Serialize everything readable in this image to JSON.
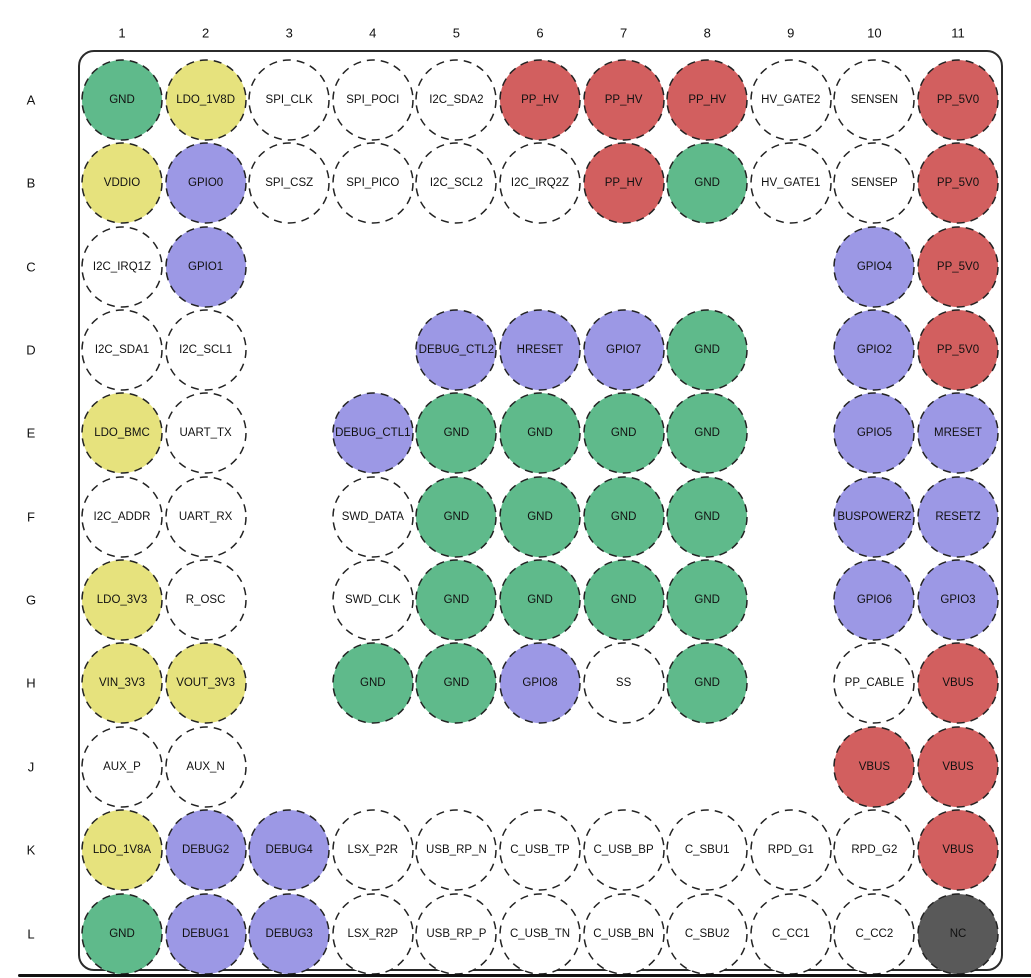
{
  "diagram": {
    "columns": [
      "1",
      "2",
      "3",
      "4",
      "5",
      "6",
      "7",
      "8",
      "9",
      "10",
      "11"
    ],
    "rows": [
      "A",
      "B",
      "C",
      "D",
      "E",
      "F",
      "G",
      "H",
      "J",
      "K",
      "L"
    ],
    "colors": {
      "green": "#5FBA8B",
      "yellow": "#E6E27D",
      "purple": "#9C98E5",
      "red": "#D25F5F",
      "dark": "#595959",
      "white": "#FFFFFF",
      "stroke": "#222222"
    },
    "pins": [
      {
        "row": "A",
        "col": 1,
        "label": "GND",
        "color": "green"
      },
      {
        "row": "A",
        "col": 2,
        "label": "LDO_1V8D",
        "color": "yellow"
      },
      {
        "row": "A",
        "col": 3,
        "label": "SPI_CLK",
        "color": "white"
      },
      {
        "row": "A",
        "col": 4,
        "label": "SPI_POCI",
        "color": "white"
      },
      {
        "row": "A",
        "col": 5,
        "label": "I2C_SDA2",
        "color": "white"
      },
      {
        "row": "A",
        "col": 6,
        "label": "PP_HV",
        "color": "red"
      },
      {
        "row": "A",
        "col": 7,
        "label": "PP_HV",
        "color": "red"
      },
      {
        "row": "A",
        "col": 8,
        "label": "PP_HV",
        "color": "red"
      },
      {
        "row": "A",
        "col": 9,
        "label": "HV_GATE2",
        "color": "white"
      },
      {
        "row": "A",
        "col": 10,
        "label": "SENSEN",
        "color": "white"
      },
      {
        "row": "A",
        "col": 11,
        "label": "PP_5V0",
        "color": "red"
      },
      {
        "row": "B",
        "col": 1,
        "label": "VDDIO",
        "color": "yellow"
      },
      {
        "row": "B",
        "col": 2,
        "label": "GPIO0",
        "color": "purple"
      },
      {
        "row": "B",
        "col": 3,
        "label": "SPI_CSZ",
        "color": "white"
      },
      {
        "row": "B",
        "col": 4,
        "label": "SPI_PICO",
        "color": "white"
      },
      {
        "row": "B",
        "col": 5,
        "label": "I2C_SCL2",
        "color": "white"
      },
      {
        "row": "B",
        "col": 6,
        "label": "I2C_IRQ2Z",
        "color": "white"
      },
      {
        "row": "B",
        "col": 7,
        "label": "PP_HV",
        "color": "red"
      },
      {
        "row": "B",
        "col": 8,
        "label": "GND",
        "color": "green"
      },
      {
        "row": "B",
        "col": 9,
        "label": "HV_GATE1",
        "color": "white"
      },
      {
        "row": "B",
        "col": 10,
        "label": "SENSEP",
        "color": "white"
      },
      {
        "row": "B",
        "col": 11,
        "label": "PP_5V0",
        "color": "red"
      },
      {
        "row": "C",
        "col": 1,
        "label": "I2C_IRQ1Z",
        "color": "white"
      },
      {
        "row": "C",
        "col": 2,
        "label": "GPIO1",
        "color": "purple"
      },
      {
        "row": "C",
        "col": 10,
        "label": "GPIO4",
        "color": "purple"
      },
      {
        "row": "C",
        "col": 11,
        "label": "PP_5V0",
        "color": "red"
      },
      {
        "row": "D",
        "col": 1,
        "label": "I2C_SDA1",
        "color": "white"
      },
      {
        "row": "D",
        "col": 2,
        "label": "I2C_SCL1",
        "color": "white"
      },
      {
        "row": "D",
        "col": 5,
        "label": "DEBUG_CTL2",
        "color": "purple"
      },
      {
        "row": "D",
        "col": 6,
        "label": "HRESET",
        "color": "purple"
      },
      {
        "row": "D",
        "col": 7,
        "label": "GPIO7",
        "color": "purple"
      },
      {
        "row": "D",
        "col": 8,
        "label": "GND",
        "color": "green"
      },
      {
        "row": "D",
        "col": 10,
        "label": "GPIO2",
        "color": "purple"
      },
      {
        "row": "D",
        "col": 11,
        "label": "PP_5V0",
        "color": "red"
      },
      {
        "row": "E",
        "col": 1,
        "label": "LDO_BMC",
        "color": "yellow"
      },
      {
        "row": "E",
        "col": 2,
        "label": "UART_TX",
        "color": "white"
      },
      {
        "row": "E",
        "col": 4,
        "label": "DEBUG_CTL1",
        "color": "purple"
      },
      {
        "row": "E",
        "col": 5,
        "label": "GND",
        "color": "green"
      },
      {
        "row": "E",
        "col": 6,
        "label": "GND",
        "color": "green"
      },
      {
        "row": "E",
        "col": 7,
        "label": "GND",
        "color": "green"
      },
      {
        "row": "E",
        "col": 8,
        "label": "GND",
        "color": "green"
      },
      {
        "row": "E",
        "col": 10,
        "label": "GPIO5",
        "color": "purple"
      },
      {
        "row": "E",
        "col": 11,
        "label": "MRESET",
        "color": "purple"
      },
      {
        "row": "F",
        "col": 1,
        "label": "I2C_ADDR",
        "color": "white"
      },
      {
        "row": "F",
        "col": 2,
        "label": "UART_RX",
        "color": "white"
      },
      {
        "row": "F",
        "col": 4,
        "label": "SWD_DATA",
        "color": "white"
      },
      {
        "row": "F",
        "col": 5,
        "label": "GND",
        "color": "green"
      },
      {
        "row": "F",
        "col": 6,
        "label": "GND",
        "color": "green"
      },
      {
        "row": "F",
        "col": 7,
        "label": "GND",
        "color": "green"
      },
      {
        "row": "F",
        "col": 8,
        "label": "GND",
        "color": "green"
      },
      {
        "row": "F",
        "col": 10,
        "label": "BUSPOWERZ",
        "color": "purple"
      },
      {
        "row": "F",
        "col": 11,
        "label": "RESETZ",
        "color": "purple"
      },
      {
        "row": "G",
        "col": 1,
        "label": "LDO_3V3",
        "color": "yellow"
      },
      {
        "row": "G",
        "col": 2,
        "label": "R_OSC",
        "color": "white"
      },
      {
        "row": "G",
        "col": 4,
        "label": "SWD_CLK",
        "color": "white"
      },
      {
        "row": "G",
        "col": 5,
        "label": "GND",
        "color": "green"
      },
      {
        "row": "G",
        "col": 6,
        "label": "GND",
        "color": "green"
      },
      {
        "row": "G",
        "col": 7,
        "label": "GND",
        "color": "green"
      },
      {
        "row": "G",
        "col": 8,
        "label": "GND",
        "color": "green"
      },
      {
        "row": "G",
        "col": 10,
        "label": "GPIO6",
        "color": "purple"
      },
      {
        "row": "G",
        "col": 11,
        "label": "GPIO3",
        "color": "purple"
      },
      {
        "row": "H",
        "col": 1,
        "label": "VIN_3V3",
        "color": "yellow"
      },
      {
        "row": "H",
        "col": 2,
        "label": "VOUT_3V3",
        "color": "yellow"
      },
      {
        "row": "H",
        "col": 4,
        "label": "GND",
        "color": "green"
      },
      {
        "row": "H",
        "col": 5,
        "label": "GND",
        "color": "green"
      },
      {
        "row": "H",
        "col": 6,
        "label": "GPIO8",
        "color": "purple"
      },
      {
        "row": "H",
        "col": 7,
        "label": "SS",
        "color": "white"
      },
      {
        "row": "H",
        "col": 8,
        "label": "GND",
        "color": "green"
      },
      {
        "row": "H",
        "col": 10,
        "label": "PP_CABLE",
        "color": "white"
      },
      {
        "row": "H",
        "col": 11,
        "label": "VBUS",
        "color": "red"
      },
      {
        "row": "J",
        "col": 1,
        "label": "AUX_P",
        "color": "white"
      },
      {
        "row": "J",
        "col": 2,
        "label": "AUX_N",
        "color": "white"
      },
      {
        "row": "J",
        "col": 10,
        "label": "VBUS",
        "color": "red"
      },
      {
        "row": "J",
        "col": 11,
        "label": "VBUS",
        "color": "red"
      },
      {
        "row": "K",
        "col": 1,
        "label": "LDO_1V8A",
        "color": "yellow"
      },
      {
        "row": "K",
        "col": 2,
        "label": "DEBUG2",
        "color": "purple"
      },
      {
        "row": "K",
        "col": 3,
        "label": "DEBUG4",
        "color": "purple"
      },
      {
        "row": "K",
        "col": 4,
        "label": "LSX_P2R",
        "color": "white"
      },
      {
        "row": "K",
        "col": 5,
        "label": "USB_RP_N",
        "color": "white"
      },
      {
        "row": "K",
        "col": 6,
        "label": "C_USB_TP",
        "color": "white"
      },
      {
        "row": "K",
        "col": 7,
        "label": "C_USB_BP",
        "color": "white"
      },
      {
        "row": "K",
        "col": 8,
        "label": "C_SBU1",
        "color": "white"
      },
      {
        "row": "K",
        "col": 9,
        "label": "RPD_G1",
        "color": "white"
      },
      {
        "row": "K",
        "col": 10,
        "label": "RPD_G2",
        "color": "white"
      },
      {
        "row": "K",
        "col": 11,
        "label": "VBUS",
        "color": "red"
      },
      {
        "row": "L",
        "col": 1,
        "label": "GND",
        "color": "green"
      },
      {
        "row": "L",
        "col": 2,
        "label": "DEBUG1",
        "color": "purple"
      },
      {
        "row": "L",
        "col": 3,
        "label": "DEBUG3",
        "color": "purple"
      },
      {
        "row": "L",
        "col": 4,
        "label": "LSX_R2P",
        "color": "white"
      },
      {
        "row": "L",
        "col": 5,
        "label": "USB_RP_P",
        "color": "white"
      },
      {
        "row": "L",
        "col": 6,
        "label": "C_USB_TN",
        "color": "white"
      },
      {
        "row": "L",
        "col": 7,
        "label": "C_USB_BN",
        "color": "white"
      },
      {
        "row": "L",
        "col": 8,
        "label": "C_SBU2",
        "color": "white"
      },
      {
        "row": "L",
        "col": 9,
        "label": "C_CC1",
        "color": "white"
      },
      {
        "row": "L",
        "col": 10,
        "label": "C_CC2",
        "color": "white"
      },
      {
        "row": "L",
        "col": 11,
        "label": "NC",
        "color": "dark"
      }
    ]
  }
}
